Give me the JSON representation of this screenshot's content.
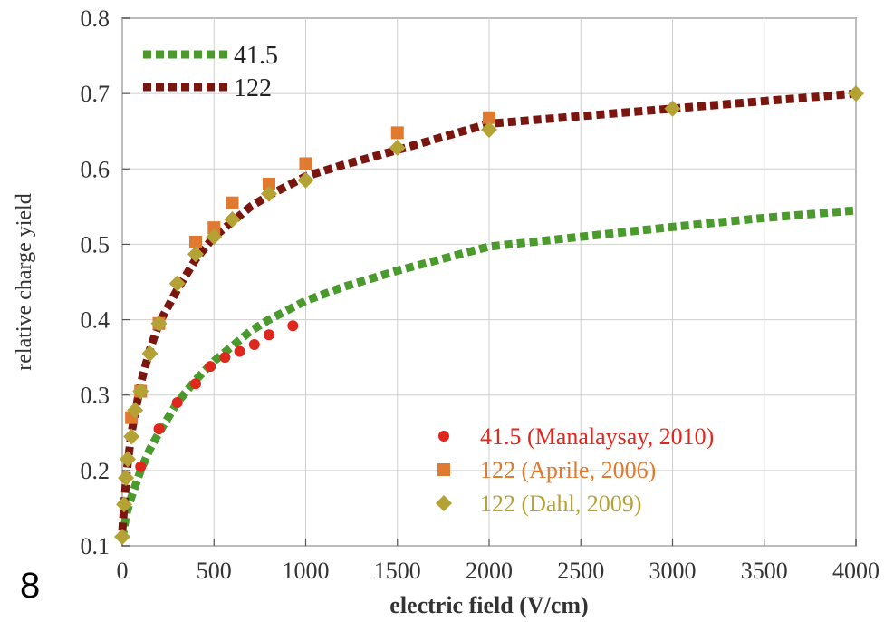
{
  "slide_number": "8",
  "colors": {
    "green": "#4a9a2e",
    "maroon": "#7a1610",
    "red": "#e0271d",
    "orange": "#e07a30",
    "olive": "#b5a235",
    "axis": "#555555",
    "grid": "#cfcfcf"
  },
  "chart_data": {
    "type": "scatter",
    "xlabel": "electric field (V/cm)",
    "ylabel": "relative charge yield",
    "xlim": [
      0,
      4000
    ],
    "ylim": [
      0.1,
      0.8
    ],
    "xticks": [
      0,
      500,
      1000,
      1500,
      2000,
      2500,
      3000,
      3500,
      4000
    ],
    "yticks": [
      0.1,
      0.2,
      0.3,
      0.4,
      0.5,
      0.6,
      0.7,
      0.8
    ],
    "grid": true,
    "legend_top": [
      {
        "label": "41.5",
        "color": "#4a9a2e"
      },
      {
        "label": "122",
        "color": "#7a1610"
      }
    ],
    "legend_bottom": [
      {
        "label": "41.5 (Manalaysay, 2010)",
        "color": "#e0271d",
        "marker": "circle"
      },
      {
        "label": "122 (Aprile, 2006)",
        "color": "#e07a30",
        "marker": "square"
      },
      {
        "label": "122 (Dahl, 2009)",
        "color": "#b5a235",
        "marker": "diamond"
      }
    ],
    "curves": [
      {
        "label": "41.5",
        "color": "#4a9a2e",
        "x": [
          0,
          25,
          50,
          100,
          150,
          200,
          300,
          400,
          500,
          600,
          700,
          800,
          1000,
          1200,
          1500,
          2000,
          2500,
          3000,
          3500,
          4000
        ],
        "y": [
          0.11,
          0.145,
          0.165,
          0.2,
          0.228,
          0.25,
          0.29,
          0.32,
          0.345,
          0.365,
          0.385,
          0.4,
          0.425,
          0.443,
          0.465,
          0.497,
          0.51,
          0.523,
          0.535,
          0.545
        ]
      },
      {
        "label": "122",
        "color": "#7a1610",
        "x": [
          0,
          25,
          50,
          100,
          150,
          200,
          300,
          400,
          500,
          600,
          700,
          800,
          1000,
          1200,
          1500,
          2000,
          2500,
          3000,
          3500,
          4000
        ],
        "y": [
          0.12,
          0.2,
          0.25,
          0.315,
          0.36,
          0.395,
          0.44,
          0.48,
          0.51,
          0.53,
          0.55,
          0.565,
          0.59,
          0.605,
          0.625,
          0.66,
          0.67,
          0.68,
          0.69,
          0.7
        ]
      }
    ],
    "points": [
      {
        "label": "41.5 (Manalaysay, 2010)",
        "marker": "circle",
        "color": "#e0271d",
        "x": [
          100,
          200,
          300,
          400,
          480,
          560,
          640,
          720,
          800,
          930
        ],
        "y": [
          0.205,
          0.255,
          0.29,
          0.315,
          0.338,
          0.35,
          0.358,
          0.367,
          0.38,
          0.392
        ]
      },
      {
        "label": "122 (Aprile, 2006)",
        "marker": "square",
        "color": "#e07a30",
        "x": [
          50,
          100,
          200,
          400,
          500,
          600,
          800,
          1000,
          1500,
          2000
        ],
        "y": [
          0.27,
          0.305,
          0.395,
          0.503,
          0.522,
          0.555,
          0.58,
          0.607,
          0.648,
          0.668
        ]
      },
      {
        "label": "122 (Dahl, 2009)",
        "marker": "diamond",
        "color": "#b5a235",
        "x": [
          0,
          10,
          20,
          30,
          50,
          70,
          100,
          150,
          200,
          300,
          400,
          500,
          600,
          800,
          1000,
          1500,
          2000,
          3000,
          4000
        ],
        "y": [
          0.112,
          0.155,
          0.19,
          0.215,
          0.245,
          0.28,
          0.305,
          0.355,
          0.395,
          0.448,
          0.487,
          0.51,
          0.533,
          0.567,
          0.585,
          0.628,
          0.652,
          0.68,
          0.7
        ]
      }
    ]
  }
}
